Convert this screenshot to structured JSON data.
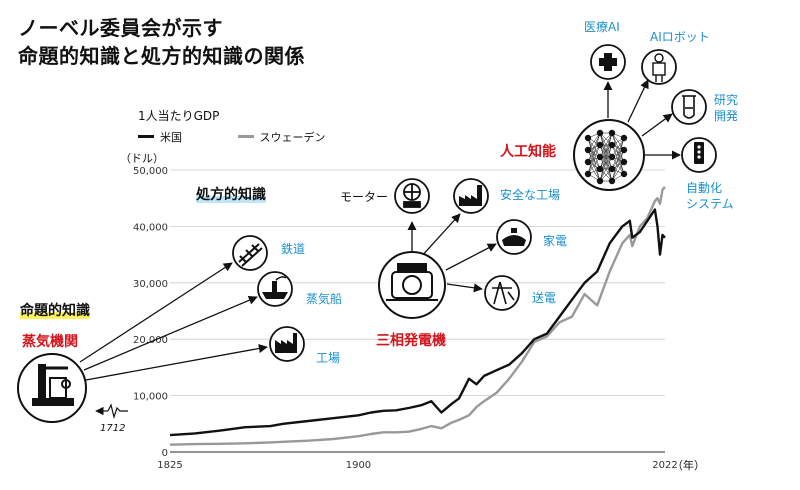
{
  "title_line1": "ノーベル委員会が示す",
  "title_line2": "命題的知識と処方的知識の関係",
  "gdp_label": "1人当たりGDP",
  "unit_label": "（ドル）",
  "year_unit": "（年）",
  "colors": {
    "us": "#111111",
    "sweden": "#999999",
    "red": "#d3141b",
    "blue": "#1a8fd0"
  },
  "concepts": {
    "propositional": "命題的知識",
    "prescriptive": "処方的知識"
  },
  "nodes": {
    "steam_engine": "蒸気機関",
    "year_1712": "1712",
    "railway": "鉄道",
    "steamship": "蒸気船",
    "factory": "工場",
    "three_phase": "三相発電機",
    "motor": "モーター",
    "safe_factory": "安全な工場",
    "appliances": "家電",
    "transmission": "送電",
    "ai": "人工知能",
    "medical_ai": "医療AI",
    "ai_robot": "AIロボット",
    "research": "研究\n開発",
    "autonomous": "自動化\nシステム"
  },
  "icons": {
    "steam_engine": "steam-engine-icon",
    "railway": "railway-track-icon",
    "steamship": "steamship-icon",
    "factory": "factory-icon",
    "generator": "generator-icon",
    "motor": "motor-wheel-icon",
    "safe_factory": "safe-factory-icon",
    "appliances": "appliance-icon",
    "transmission": "transmission-tower-icon",
    "neural_net": "neural-network-icon",
    "medical": "medical-cross-icon",
    "robot": "robot-icon",
    "flask": "flask-icon",
    "automation": "automation-device-icon"
  },
  "chart_data": {
    "type": "line",
    "xlabel": "",
    "ylabel": "1人当たりGDP",
    "xlim": [
      1825,
      2022
    ],
    "ylim": [
      0,
      50000
    ],
    "x_ticks": [
      "1825",
      "1900",
      "2022"
    ],
    "y_ticks": [
      "0",
      "10,000",
      "20,000",
      "30,000",
      "40,000",
      "50,000"
    ],
    "grid": true,
    "legend": "top-left",
    "series": [
      {
        "name": "米国",
        "color": "#111111",
        "x": [
          1825,
          1835,
          1845,
          1855,
          1865,
          1870,
          1880,
          1890,
          1900,
          1905,
          1910,
          1915,
          1920,
          1925,
          1929,
          1933,
          1937,
          1940,
          1944,
          1947,
          1950,
          1955,
          1960,
          1965,
          1970,
          1975,
          1980,
          1985,
          1990,
          1995,
          2000,
          2005,
          2008,
          2009,
          2012,
          2015,
          2018,
          2019,
          2020,
          2021,
          2022
        ],
        "values": [
          3000,
          3300,
          3800,
          4400,
          4600,
          5000,
          5500,
          6000,
          6500,
          7000,
          7300,
          7400,
          7800,
          8300,
          9000,
          7000,
          8500,
          9500,
          13000,
          12000,
          13500,
          14500,
          15500,
          17500,
          20000,
          21000,
          24000,
          27000,
          30000,
          32000,
          37000,
          40000,
          41000,
          38000,
          39000,
          41000,
          43000,
          40000,
          35000,
          38500,
          38000
        ]
      },
      {
        "name": "スウェーデン",
        "color": "#999999",
        "x": [
          1825,
          1835,
          1845,
          1855,
          1865,
          1870,
          1880,
          1890,
          1900,
          1905,
          1910,
          1915,
          1920,
          1925,
          1929,
          1933,
          1937,
          1940,
          1944,
          1947,
          1950,
          1955,
          1960,
          1965,
          1970,
          1975,
          1980,
          1985,
          1990,
          1995,
          2000,
          2005,
          2008,
          2009,
          2012,
          2015,
          2018,
          2019,
          2020,
          2021,
          2022
        ],
        "values": [
          1300,
          1400,
          1450,
          1550,
          1700,
          1800,
          2000,
          2300,
          2800,
          3200,
          3500,
          3500,
          3600,
          4100,
          4600,
          4200,
          5200,
          5700,
          6500,
          8000,
          9000,
          10500,
          13000,
          16000,
          19500,
          20500,
          23000,
          24000,
          28000,
          26000,
          32000,
          37000,
          38500,
          36500,
          40000,
          41500,
          44500,
          45000,
          44000,
          46500,
          47000
        ]
      }
    ]
  }
}
